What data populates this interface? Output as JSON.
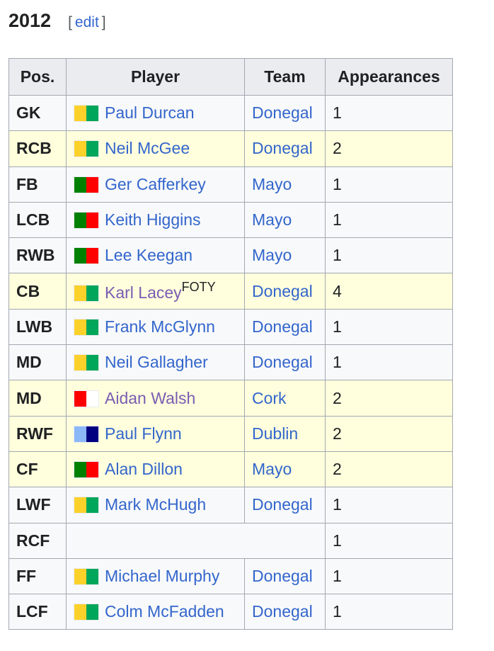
{
  "heading": {
    "title": "2012",
    "edit_open": "[",
    "edit": "edit",
    "edit_close": "]"
  },
  "columns": [
    "Pos.",
    "Player",
    "Team",
    "Appearances"
  ],
  "flags": {
    "Donegal": [
      "#fcd12a",
      "#00a65a"
    ],
    "Mayo": [
      "#008000",
      "#ff0000"
    ],
    "Cork": [
      "#ff0000",
      "#ffffff"
    ],
    "Dublin": [
      "#8cb8f8",
      "#000080"
    ]
  },
  "rows": [
    {
      "pos": "GK",
      "player": "Paul Durcan",
      "team": "Donegal",
      "apps": "1"
    },
    {
      "pos": "RCB",
      "player": "Neil McGee",
      "team": "Donegal",
      "apps": "2",
      "highlight": true
    },
    {
      "pos": "FB",
      "player": "Ger Cafferkey",
      "team": "Mayo",
      "apps": "1"
    },
    {
      "pos": "LCB",
      "player": "Keith Higgins",
      "team": "Mayo",
      "apps": "1"
    },
    {
      "pos": "RWB",
      "player": "Lee Keegan",
      "team": "Mayo",
      "apps": "1"
    },
    {
      "pos": "CB",
      "player": "Karl Lacey",
      "note": "FOTY",
      "team": "Donegal",
      "apps": "4",
      "highlight": true,
      "visited": true
    },
    {
      "pos": "LWB",
      "player": "Frank McGlynn",
      "team": "Donegal",
      "apps": "1"
    },
    {
      "pos": "MD",
      "player": "Neil Gallagher",
      "team": "Donegal",
      "apps": "1"
    },
    {
      "pos": "MD",
      "player": "Aidan Walsh",
      "team": "Cork",
      "apps": "2",
      "highlight": true,
      "visited": true
    },
    {
      "pos": "RWF",
      "player": "Paul Flynn",
      "team": "Dublin",
      "apps": "2",
      "highlight": true
    },
    {
      "pos": "CF",
      "player": "Alan Dillon",
      "team": "Mayo",
      "apps": "2",
      "highlight": true
    },
    {
      "pos": "LWF",
      "player": "Mark McHugh",
      "team": "Donegal",
      "apps": "1"
    },
    {
      "pos": "RCF",
      "player": "",
      "team": "",
      "apps": "1"
    },
    {
      "pos": "FF",
      "player": "Michael Murphy",
      "team": "Donegal",
      "apps": "1"
    },
    {
      "pos": "LCF",
      "player": "Colm McFadden",
      "team": "Donegal",
      "apps": "1"
    }
  ]
}
